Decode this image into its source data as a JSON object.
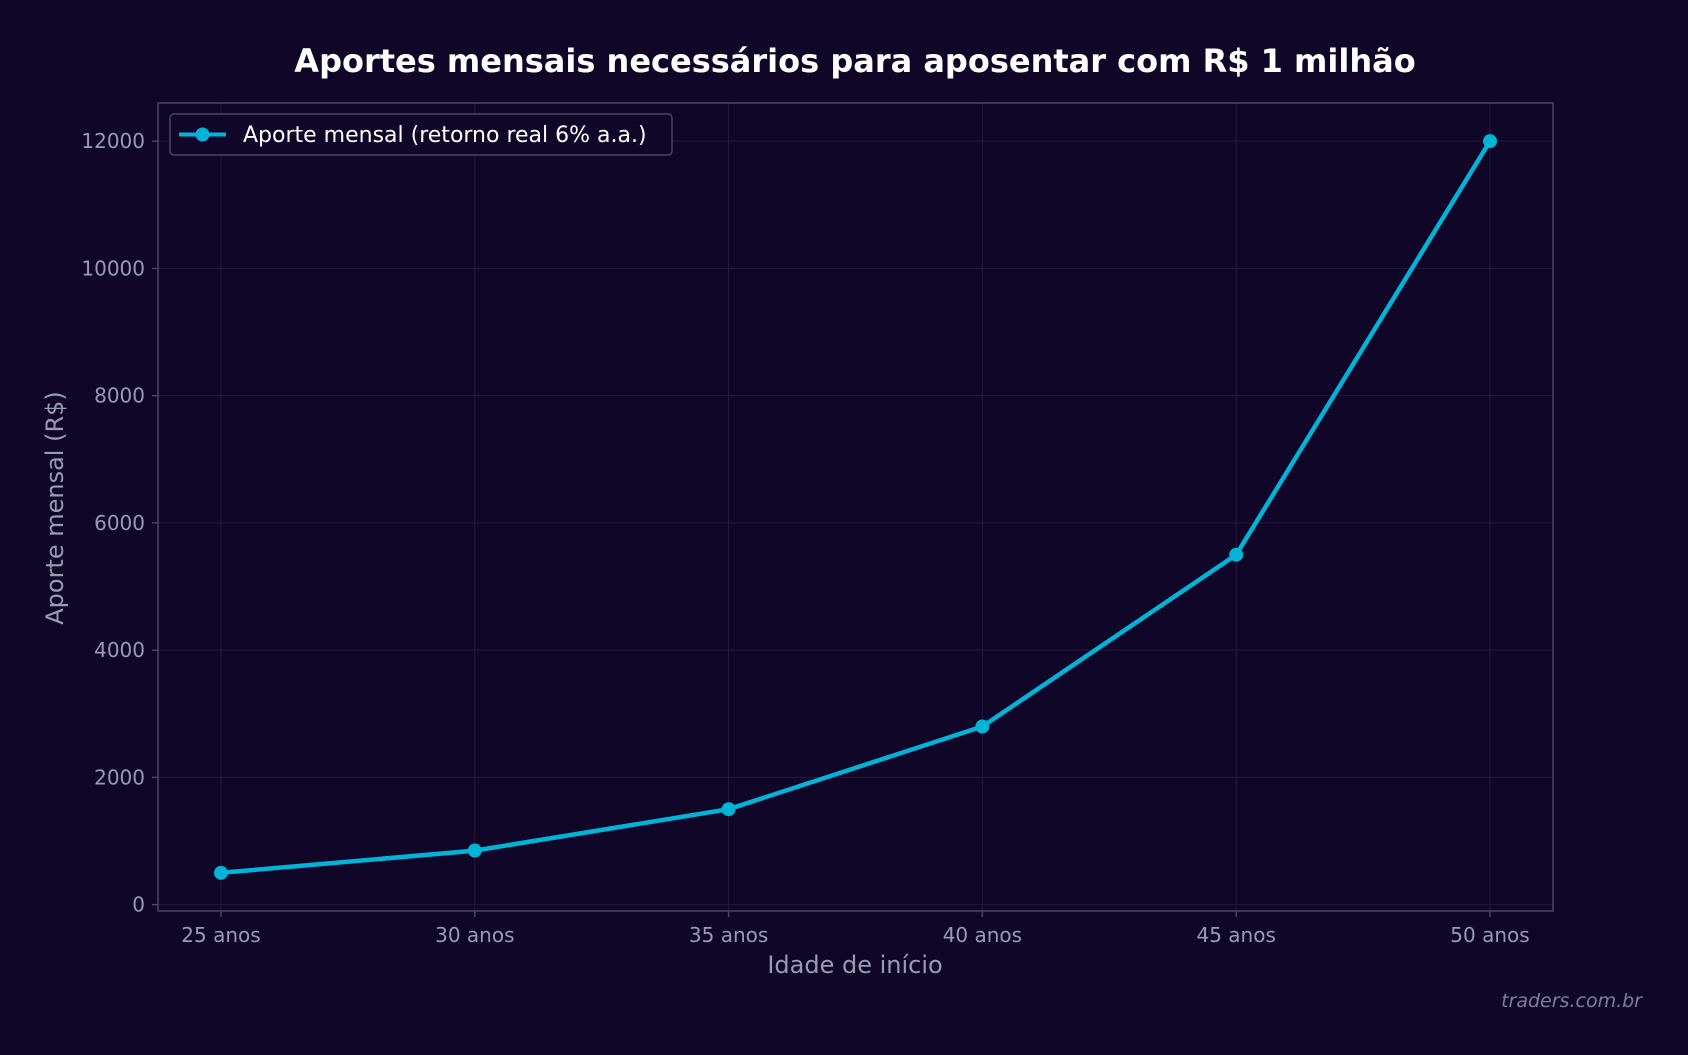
{
  "chart_data": {
    "type": "line",
    "title": "Aportes mensais necessários para aposentar com R$ 1 milhão",
    "xlabel": "Idade de início",
    "ylabel": "Aporte mensal (R$)",
    "categories": [
      "25 anos",
      "30 anos",
      "35 anos",
      "40 anos",
      "45 anos",
      "50 anos"
    ],
    "series": [
      {
        "name": "Aporte mensal (retorno real 6% a.a.)",
        "values": [
          500,
          850,
          1500,
          2800,
          5500,
          12000
        ],
        "color": "#00b4d8"
      }
    ],
    "yticks": [
      "0",
      "2000",
      "4000",
      "6000",
      "8000",
      "10000",
      "12000"
    ],
    "ylim": [
      -100,
      12600
    ],
    "grid": true,
    "legend_position": "top-left",
    "marker": "circle"
  },
  "watermark": "traders.com.br",
  "colors": {
    "background": "#100628",
    "plot_background": "#100628",
    "axis_frame": "#4a4563",
    "grid": "#231b3c",
    "tick_text": "#9a9ab5",
    "title_text": "#ffffff",
    "series": "#00b4d8"
  }
}
